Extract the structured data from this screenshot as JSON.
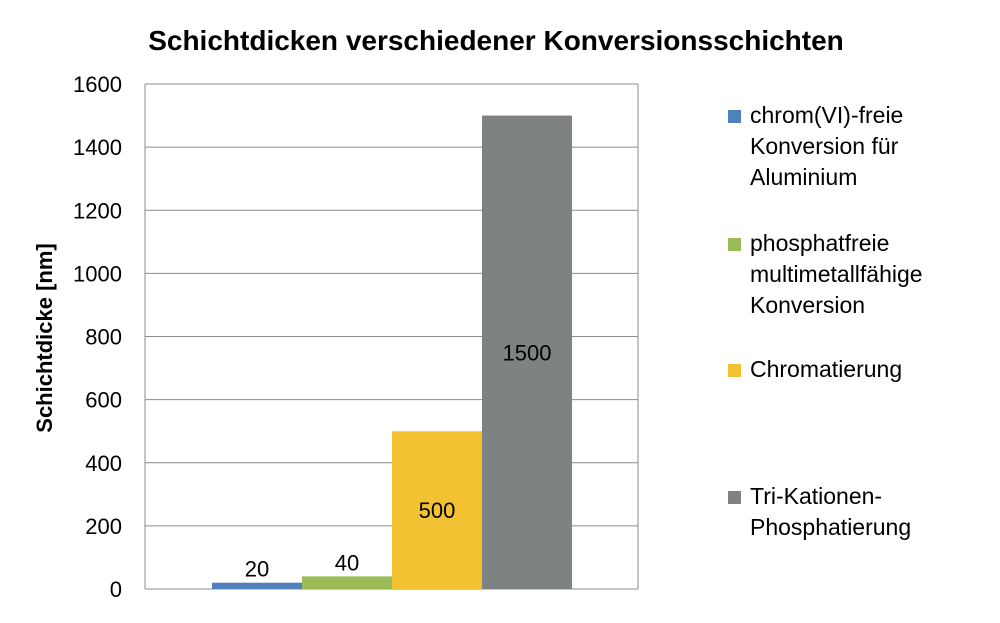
{
  "chart_data": {
    "type": "bar",
    "title": "Schichtdicken verschiedener Konversionsschichten",
    "xlabel": "",
    "ylabel": "Schichtdicke [nm]",
    "ylim": [
      0,
      1600
    ],
    "yticks": [
      0,
      200,
      400,
      600,
      800,
      1000,
      1200,
      1400,
      1600
    ],
    "grid": true,
    "legend_position": "right",
    "series": [
      {
        "name": "chrom(VI)-freie Konversion für Aluminium",
        "legend_lines": [
          "chrom(VI)-freie",
          "Konversion für",
          "Aluminium"
        ],
        "value": 20,
        "label": "20",
        "color": "#4f81bd"
      },
      {
        "name": "phosphatfreie multimetallfähige Konversion",
        "legend_lines": [
          "phosphatfreie",
          "multimetallfähige",
          "Konversion"
        ],
        "value": 40,
        "label": "40",
        "color": "#9bbb59"
      },
      {
        "name": "Chromatierung",
        "legend_lines": [
          "Chromatierung"
        ],
        "value": 500,
        "label": "500",
        "color": "#f2c232"
      },
      {
        "name": "Tri-Kationen-Phosphatierung",
        "legend_lines": [
          "Tri-Kationen-",
          "Phosphatierung"
        ],
        "value": 1500,
        "label": "1500",
        "color": "#7f8282"
      }
    ]
  }
}
